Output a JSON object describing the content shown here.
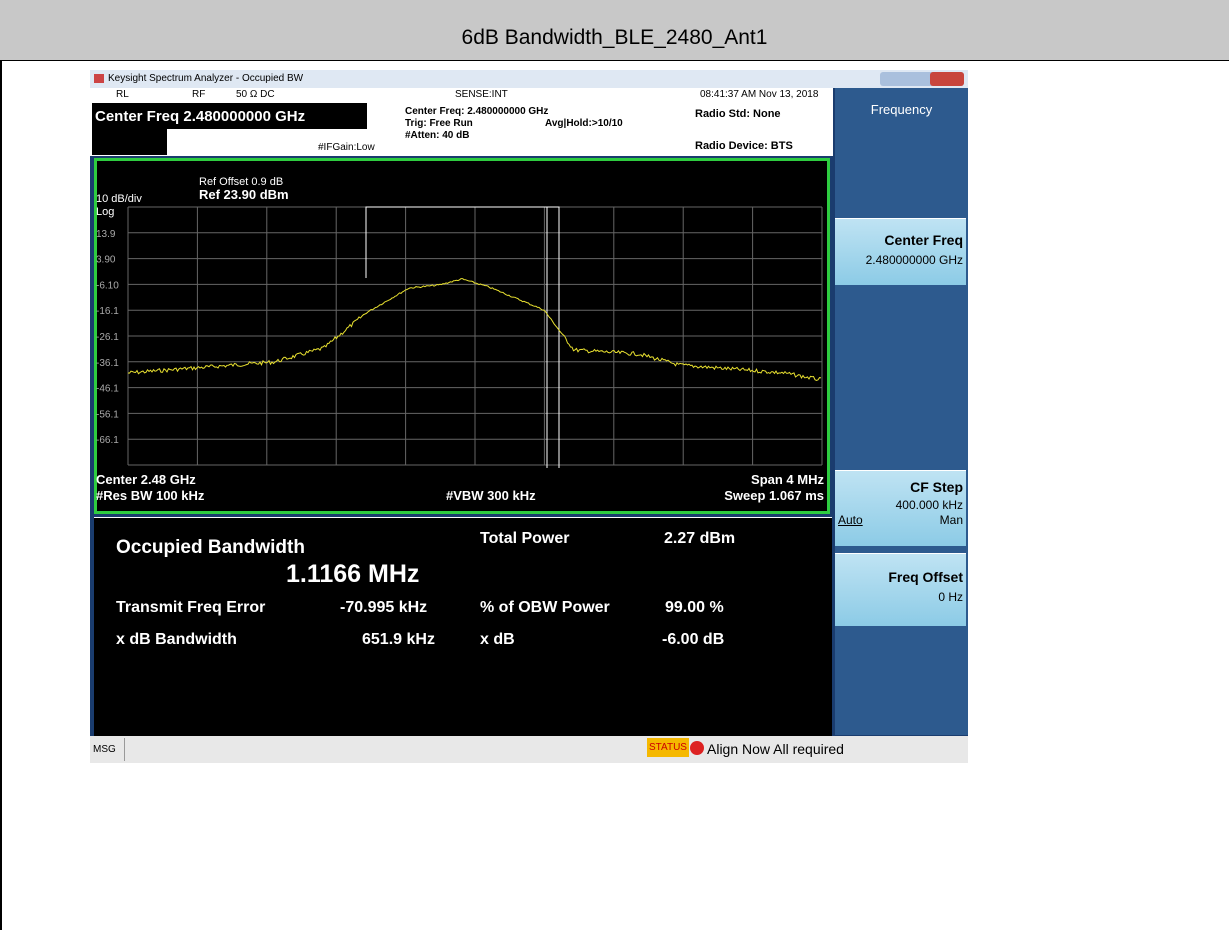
{
  "document": {
    "title": "6dB Bandwidth_BLE_2480_Ant1"
  },
  "window": {
    "title": "Keysight Spectrum Analyzer - Occupied BW"
  },
  "status_row": {
    "rl": "RL",
    "rf": "RF",
    "impedance": "50 Ω  DC",
    "sense": "SENSE:INT",
    "timestamp": "08:41:37 AM Nov 13, 2018"
  },
  "header": {
    "active": "Center Freq 2.480000000 GHz",
    "ifgain": "#IFGain:Low",
    "center": "Center Freq: 2.480000000 GHz",
    "trig": "Trig: Free Run",
    "avg": "Avg|Hold:>10/10",
    "atten": "#Atten: 40 dB",
    "radio_std": "Radio Std: None",
    "radio_device": "Radio Device: BTS"
  },
  "graph": {
    "ref_offset": "Ref Offset 0.9 dB",
    "ref_level": "Ref 23.90 dBm",
    "scale": "10 dB/div",
    "log": "Log",
    "y_labels": [
      "13.9",
      "3.90",
      "-6.10",
      "-16.1",
      "-26.1",
      "-36.1",
      "-46.1",
      "-56.1",
      "-66.1"
    ],
    "center": "Center  2.48 GHz",
    "res_bw": "#Res BW  100 kHz",
    "vbw": "#VBW  300 kHz",
    "span": "Span 4 MHz",
    "sweep": "Sweep  1.067 ms"
  },
  "results": {
    "occupied_label": "Occupied Bandwidth",
    "occupied_value": "1.1166 MHz",
    "total_power_label": "Total Power",
    "total_power_value": "2.27 dBm",
    "freq_error_label": "Transmit Freq Error",
    "freq_error_value": "-70.995 kHz",
    "obw_power_label": "% of OBW Power",
    "obw_power_value": "99.00 %",
    "xdb_bw_label": "x dB Bandwidth",
    "xdb_bw_value": "651.9 kHz",
    "xdb_label": "x dB",
    "xdb_value": "-6.00 dB"
  },
  "softkeys": {
    "menu": "Frequency",
    "center_freq": {
      "label": "Center Freq",
      "value": "2.480000000 GHz"
    },
    "cf_step": {
      "label": "CF Step",
      "value": "400.000 kHz",
      "auto": "Auto",
      "man": "Man"
    },
    "freq_offset": {
      "label": "Freq Offset",
      "value": "0 Hz"
    }
  },
  "statusbar": {
    "msg": "MSG",
    "status": "STATUS",
    "message": "Align Now All required"
  }
}
